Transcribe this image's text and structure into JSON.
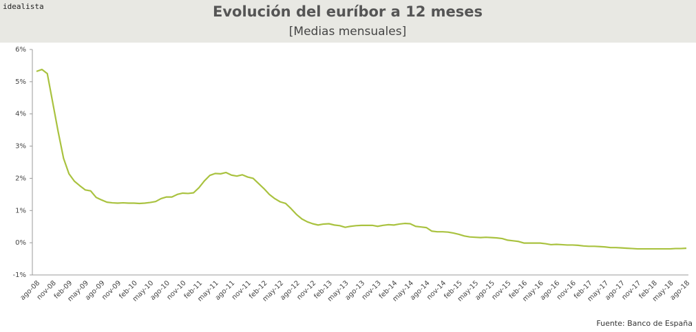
{
  "chart_data": {
    "type": "line",
    "logo": "idealista",
    "title": "Evolución del euríbor a 12 meses",
    "subtitle": "[Medias mensuales]",
    "source": "Fuente: Banco de España",
    "color": "#a9c23f",
    "categories": [
      "ago-08",
      null,
      null,
      "nov-08",
      null,
      null,
      "feb-09",
      null,
      null,
      "may-09",
      null,
      null,
      "ago-09",
      null,
      null,
      "nov-09",
      null,
      null,
      "feb-10",
      null,
      null,
      "may-10",
      null,
      null,
      "ago-10",
      null,
      null,
      "nov-10",
      null,
      null,
      "feb-11",
      null,
      null,
      "may-11",
      null,
      null,
      "ago-11",
      null,
      null,
      "nov-11",
      null,
      null,
      "feb-12",
      null,
      null,
      "may-12",
      null,
      null,
      "ago-12",
      null,
      null,
      "nov-12",
      null,
      null,
      "feb-13",
      null,
      null,
      "may-13",
      null,
      null,
      "ago-13",
      null,
      null,
      "nov-13",
      null,
      null,
      "feb-14",
      null,
      null,
      "may-14",
      null,
      null,
      "ago-14",
      null,
      null,
      "nov-14",
      null,
      null,
      "feb-15",
      null,
      null,
      "may-15",
      null,
      null,
      "ago-15",
      null,
      null,
      "nov-15",
      null,
      null,
      "feb-16",
      null,
      null,
      "may-16",
      null,
      null,
      "ago-16",
      null,
      null,
      "nov-16",
      null,
      null,
      "feb-17",
      null,
      null,
      "may-17",
      null,
      null,
      "ago-17",
      null,
      null,
      "nov-17",
      null,
      null,
      "feb-18",
      null,
      null,
      "may-18",
      null,
      null,
      "ago-18"
    ],
    "values": [
      5.32,
      5.38,
      5.25,
      4.35,
      3.45,
      2.62,
      2.14,
      1.91,
      1.77,
      1.64,
      1.61,
      1.41,
      1.33,
      1.26,
      1.24,
      1.23,
      1.24,
      1.23,
      1.23,
      1.22,
      1.23,
      1.25,
      1.28,
      1.37,
      1.42,
      1.42,
      1.5,
      1.54,
      1.53,
      1.55,
      1.71,
      1.92,
      2.09,
      2.15,
      2.14,
      2.18,
      2.1,
      2.07,
      2.11,
      2.04,
      2.0,
      1.84,
      1.68,
      1.5,
      1.37,
      1.27,
      1.22,
      1.06,
      0.88,
      0.74,
      0.65,
      0.59,
      0.55,
      0.58,
      0.59,
      0.55,
      0.53,
      0.48,
      0.51,
      0.53,
      0.54,
      0.54,
      0.54,
      0.51,
      0.54,
      0.56,
      0.55,
      0.58,
      0.6,
      0.59,
      0.51,
      0.49,
      0.47,
      0.36,
      0.34,
      0.34,
      0.33,
      0.3,
      0.26,
      0.21,
      0.18,
      0.17,
      0.16,
      0.17,
      0.16,
      0.15,
      0.13,
      0.08,
      0.06,
      0.04,
      -0.01,
      -0.01,
      -0.01,
      -0.01,
      -0.03,
      -0.06,
      -0.05,
      -0.06,
      -0.07,
      -0.07,
      -0.08,
      -0.1,
      -0.11,
      -0.11,
      -0.12,
      -0.13,
      -0.15,
      -0.15,
      -0.16,
      -0.17,
      -0.18,
      -0.19,
      -0.19,
      -0.19,
      -0.19,
      -0.19,
      -0.19,
      -0.19,
      -0.18,
      -0.18,
      -0.17
    ],
    "ylim": [
      -1,
      6
    ],
    "yticks": [
      {
        "value": -1,
        "label": "-1%"
      },
      {
        "value": 0,
        "label": "0%"
      },
      {
        "value": 1,
        "label": "1%"
      },
      {
        "value": 2,
        "label": "2%"
      },
      {
        "value": 3,
        "label": "3%"
      },
      {
        "value": 4,
        "label": "4%"
      },
      {
        "value": 5,
        "label": "5%"
      },
      {
        "value": 6,
        "label": "6%"
      }
    ]
  }
}
